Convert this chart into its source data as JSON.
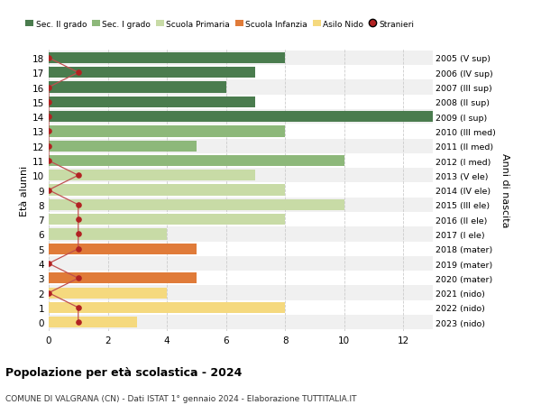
{
  "ages": [
    18,
    17,
    16,
    15,
    14,
    13,
    12,
    11,
    10,
    9,
    8,
    7,
    6,
    5,
    4,
    3,
    2,
    1,
    0
  ],
  "right_labels": [
    "2005 (V sup)",
    "2006 (IV sup)",
    "2007 (III sup)",
    "2008 (II sup)",
    "2009 (I sup)",
    "2010 (III med)",
    "2011 (II med)",
    "2012 (I med)",
    "2013 (V ele)",
    "2014 (IV ele)",
    "2015 (III ele)",
    "2016 (II ele)",
    "2017 (I ele)",
    "2018 (mater)",
    "2019 (mater)",
    "2020 (mater)",
    "2021 (nido)",
    "2022 (nido)",
    "2023 (nido)"
  ],
  "bar_values": [
    8,
    7,
    6,
    7,
    13,
    8,
    5,
    10,
    7,
    8,
    10,
    8,
    4,
    5,
    0,
    5,
    4,
    8,
    3
  ],
  "stranieri_values": [
    0,
    1,
    0,
    0,
    0,
    0,
    0,
    0,
    1,
    0,
    1,
    1,
    1,
    1,
    0,
    1,
    0,
    1,
    1
  ],
  "bar_colors": [
    "#4a7c4e",
    "#4a7c4e",
    "#4a7c4e",
    "#4a7c4e",
    "#4a7c4e",
    "#8db87a",
    "#8db87a",
    "#8db87a",
    "#c8dba6",
    "#c8dba6",
    "#c8dba6",
    "#c8dba6",
    "#c8dba6",
    "#e07b39",
    "#e07b39",
    "#e07b39",
    "#f5d97e",
    "#f5d97e",
    "#f5d97e"
  ],
  "legend_colors": [
    "#4a7c4e",
    "#8db87a",
    "#c8dba6",
    "#e07b39",
    "#f5d97e"
  ],
  "legend_labels": [
    "Sec. II grado",
    "Sec. I grado",
    "Scuola Primaria",
    "Scuola Infanzia",
    "Asilo Nido",
    "Stranieri"
  ],
  "stranieri_color": "#b22222",
  "stranieri_line_color": "#c05050",
  "ylabel": "Età alunni",
  "right_ylabel": "Anni di nascita",
  "title": "Popolazione per età scolastica - 2024",
  "subtitle": "COMUNE DI VALGRANA (CN) - Dati ISTAT 1° gennaio 2024 - Elaborazione TUTTITALIA.IT",
  "xlim": [
    0,
    13
  ],
  "xticks": [
    0,
    2,
    4,
    6,
    8,
    10,
    12
  ],
  "bg_color": "#ffffff",
  "row_bg_even": "#f0f0f0",
  "grid_color": "#cccccc",
  "bar_height": 0.75
}
